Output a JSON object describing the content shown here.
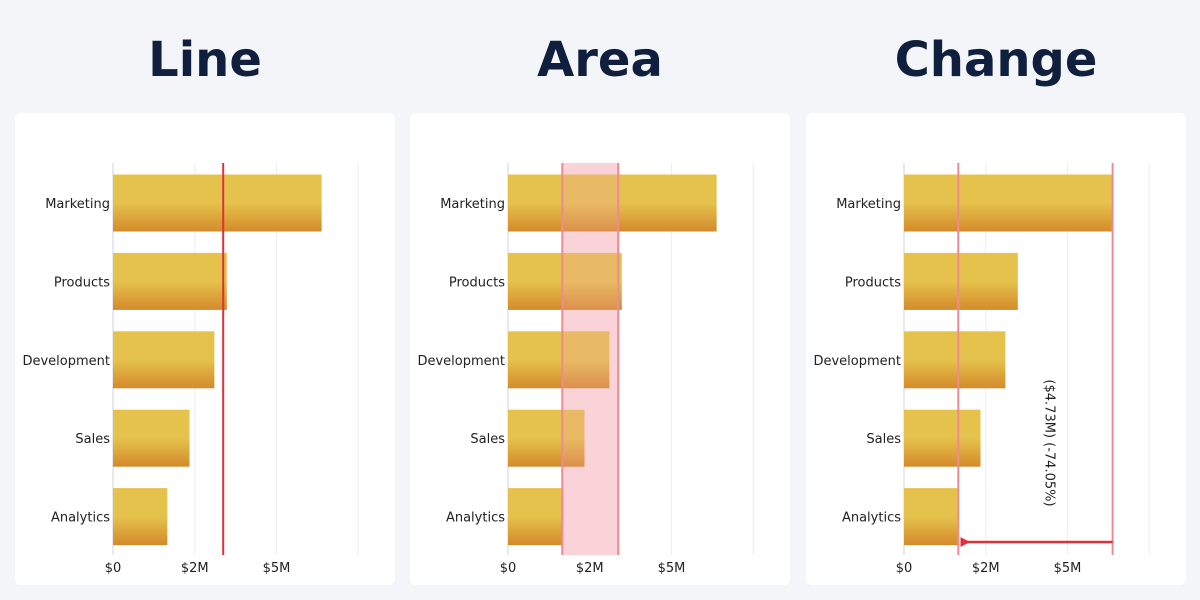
{
  "panels": [
    {
      "heading": "Line"
    },
    {
      "heading": "Area"
    },
    {
      "heading": "Change"
    }
  ],
  "colors": {
    "bar_top": "#e5c24c",
    "bar_bottom": "#d48a2b",
    "marker": "#e0303b",
    "band_fill": "#fde3e7"
  },
  "chart_data": [
    {
      "type": "bar",
      "orientation": "horizontal",
      "categories": [
        "Marketing",
        "Products",
        "Development",
        "Sales",
        "Analytics"
      ],
      "values": [
        6.38,
        3.48,
        3.1,
        2.34,
        1.66
      ],
      "x_ticks": [
        "$0",
        "$2M",
        "$5M"
      ],
      "x_tick_values": [
        0,
        2.5,
        5
      ],
      "xlim": [
        0,
        7.5
      ],
      "grid": true,
      "annotation": {
        "type": "line",
        "x": 3.37
      }
    },
    {
      "type": "bar",
      "orientation": "horizontal",
      "categories": [
        "Marketing",
        "Products",
        "Development",
        "Sales",
        "Analytics"
      ],
      "values": [
        6.38,
        3.48,
        3.1,
        2.34,
        1.66
      ],
      "x_ticks": [
        "$0",
        "$2M",
        "$5M"
      ],
      "x_tick_values": [
        0,
        2.5,
        5
      ],
      "xlim": [
        0,
        7.5
      ],
      "grid": true,
      "annotation": {
        "type": "area",
        "x_from": 1.66,
        "x_to": 3.37
      }
    },
    {
      "type": "bar",
      "orientation": "horizontal",
      "categories": [
        "Marketing",
        "Products",
        "Development",
        "Sales",
        "Analytics"
      ],
      "values": [
        6.38,
        3.48,
        3.1,
        2.34,
        1.66
      ],
      "x_ticks": [
        "$0",
        "$2M",
        "$5M"
      ],
      "x_tick_values": [
        0,
        2.5,
        5
      ],
      "xlim": [
        0,
        7.5
      ],
      "grid": true,
      "annotation": {
        "type": "change",
        "from": "Marketing",
        "to": "Analytics",
        "label": "($4.73M) (-74.05%)"
      }
    }
  ]
}
